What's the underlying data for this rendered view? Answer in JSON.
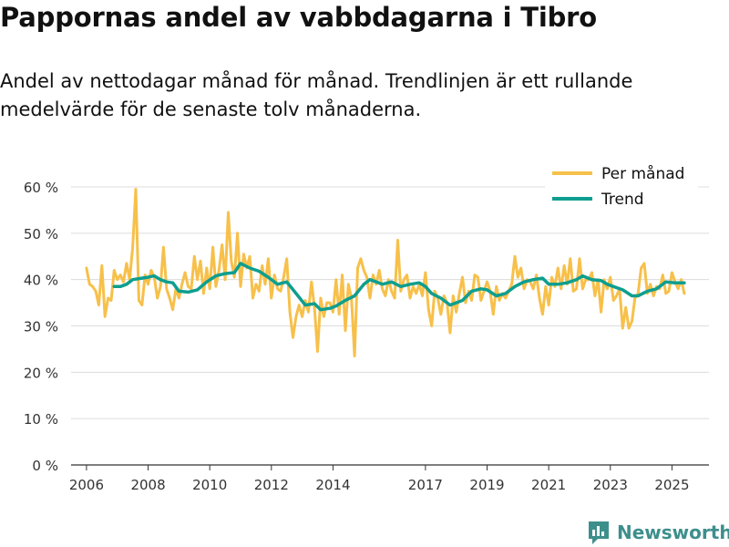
{
  "title": "Pappornas andel av vabbdagarna i Tibro",
  "subtitle": "Andel av nettodagar månad för månad. Trendlinjen är ett rullande medelvärde för de senaste tolv månaderna.",
  "brand": {
    "name": "Newsworthy",
    "icon": "bar-chart-speech-bubble-icon",
    "color": "#3d8f8c"
  },
  "chart_data": {
    "type": "line",
    "x_range": [
      2005.5,
      2026.2
    ],
    "ylim": [
      0,
      60
    ],
    "y_ticks": [
      0,
      10,
      20,
      30,
      40,
      50,
      60
    ],
    "y_tick_labels": [
      "0 %",
      "10 %",
      "20 %",
      "30 %",
      "40 %",
      "50 %",
      "60 %"
    ],
    "x_ticks": [
      2006,
      2008,
      2010,
      2012,
      2014,
      2017,
      2019,
      2021,
      2023,
      2025
    ],
    "x_tick_labels": [
      "2006",
      "2008",
      "2010",
      "2012",
      "2014",
      "2017",
      "2019",
      "2021",
      "2023",
      "2025"
    ],
    "grid": true,
    "legend_position": "top-right",
    "series": [
      {
        "name": "Per månad",
        "color": "#f7c04a",
        "points": [
          [
            2006.0,
            42.5
          ],
          [
            2006.1,
            39.0
          ],
          [
            2006.2,
            38.5
          ],
          [
            2006.3,
            37.5
          ],
          [
            2006.4,
            34.5
          ],
          [
            2006.5,
            43.0
          ],
          [
            2006.6,
            32.0
          ],
          [
            2006.7,
            36.0
          ],
          [
            2006.8,
            35.5
          ],
          [
            2006.9,
            42.0
          ],
          [
            2007.0,
            40.0
          ],
          [
            2007.1,
            41.0
          ],
          [
            2007.2,
            39.5
          ],
          [
            2007.3,
            43.5
          ],
          [
            2007.4,
            40.0
          ],
          [
            2007.5,
            47.0
          ],
          [
            2007.6,
            59.5
          ],
          [
            2007.7,
            35.5
          ],
          [
            2007.8,
            34.5
          ],
          [
            2007.9,
            41.0
          ],
          [
            2008.0,
            39.0
          ],
          [
            2008.1,
            42.0
          ],
          [
            2008.2,
            40.5
          ],
          [
            2008.3,
            36.0
          ],
          [
            2008.4,
            38.5
          ],
          [
            2008.5,
            47.0
          ],
          [
            2008.6,
            38.0
          ],
          [
            2008.7,
            36.0
          ],
          [
            2008.8,
            33.5
          ],
          [
            2008.9,
            38.0
          ],
          [
            2009.0,
            36.0
          ],
          [
            2009.1,
            39.0
          ],
          [
            2009.2,
            41.5
          ],
          [
            2009.3,
            38.5
          ],
          [
            2009.4,
            38.0
          ],
          [
            2009.5,
            45.0
          ],
          [
            2009.6,
            40.0
          ],
          [
            2009.7,
            44.0
          ],
          [
            2009.8,
            37.0
          ],
          [
            2009.9,
            42.5
          ],
          [
            2010.0,
            38.0
          ],
          [
            2010.1,
            47.0
          ],
          [
            2010.2,
            38.5
          ],
          [
            2010.3,
            42.0
          ],
          [
            2010.4,
            47.5
          ],
          [
            2010.5,
            40.0
          ],
          [
            2010.6,
            54.5
          ],
          [
            2010.7,
            44.0
          ],
          [
            2010.8,
            40.5
          ],
          [
            2010.9,
            50.0
          ],
          [
            2011.0,
            38.5
          ],
          [
            2011.1,
            45.5
          ],
          [
            2011.2,
            42.5
          ],
          [
            2011.3,
            45.0
          ],
          [
            2011.4,
            36.0
          ],
          [
            2011.5,
            39.0
          ],
          [
            2011.6,
            37.5
          ],
          [
            2011.7,
            43.0
          ],
          [
            2011.8,
            39.0
          ],
          [
            2011.9,
            44.5
          ],
          [
            2012.0,
            36.0
          ],
          [
            2012.1,
            41.0
          ],
          [
            2012.2,
            38.0
          ],
          [
            2012.3,
            37.5
          ],
          [
            2012.4,
            40.5
          ],
          [
            2012.5,
            44.5
          ],
          [
            2012.6,
            33.0
          ],
          [
            2012.7,
            27.5
          ],
          [
            2012.8,
            32.0
          ],
          [
            2012.9,
            34.5
          ],
          [
            2013.0,
            32.0
          ],
          [
            2013.1,
            35.5
          ],
          [
            2013.2,
            33.0
          ],
          [
            2013.3,
            39.5
          ],
          [
            2013.4,
            34.0
          ],
          [
            2013.5,
            24.5
          ],
          [
            2013.6,
            36.0
          ],
          [
            2013.7,
            32.0
          ],
          [
            2013.8,
            35.0
          ],
          [
            2013.9,
            35.0
          ],
          [
            2014.0,
            33.0
          ],
          [
            2014.1,
            40.0
          ],
          [
            2014.2,
            32.5
          ],
          [
            2014.3,
            41.0
          ],
          [
            2014.4,
            29.0
          ],
          [
            2014.5,
            39.0
          ],
          [
            2014.6,
            36.0
          ],
          [
            2014.7,
            23.5
          ],
          [
            2014.8,
            42.5
          ],
          [
            2014.9,
            44.5
          ],
          [
            2015.0,
            42.0
          ],
          [
            2015.1,
            40.5
          ],
          [
            2015.2,
            36.0
          ],
          [
            2015.3,
            41.0
          ],
          [
            2015.4,
            39.0
          ],
          [
            2015.5,
            42.0
          ],
          [
            2015.6,
            38.0
          ],
          [
            2015.7,
            36.5
          ],
          [
            2015.8,
            40.0
          ],
          [
            2015.9,
            37.5
          ],
          [
            2016.0,
            36.0
          ],
          [
            2016.1,
            48.5
          ],
          [
            2016.2,
            37.5
          ],
          [
            2016.3,
            40.0
          ],
          [
            2016.4,
            41.0
          ],
          [
            2016.5,
            36.0
          ],
          [
            2016.6,
            38.5
          ],
          [
            2016.7,
            37.0
          ],
          [
            2016.8,
            39.0
          ],
          [
            2016.9,
            36.5
          ],
          [
            2017.0,
            41.5
          ],
          [
            2017.1,
            33.5
          ],
          [
            2017.2,
            30.0
          ],
          [
            2017.3,
            37.5
          ],
          [
            2017.4,
            36.0
          ],
          [
            2017.5,
            32.5
          ],
          [
            2017.6,
            36.5
          ],
          [
            2017.7,
            35.0
          ],
          [
            2017.8,
            28.5
          ],
          [
            2017.9,
            36.5
          ],
          [
            2018.0,
            33.0
          ],
          [
            2018.1,
            37.0
          ],
          [
            2018.2,
            40.5
          ],
          [
            2018.3,
            35.0
          ],
          [
            2018.4,
            37.5
          ],
          [
            2018.5,
            35.5
          ],
          [
            2018.6,
            41.0
          ],
          [
            2018.7,
            40.5
          ],
          [
            2018.8,
            35.5
          ],
          [
            2018.9,
            37.5
          ],
          [
            2019.0,
            39.5
          ],
          [
            2019.1,
            37.5
          ],
          [
            2019.2,
            32.5
          ],
          [
            2019.3,
            38.5
          ],
          [
            2019.4,
            35.5
          ],
          [
            2019.5,
            37.0
          ],
          [
            2019.6,
            36.0
          ],
          [
            2019.7,
            37.5
          ],
          [
            2019.8,
            39.0
          ],
          [
            2019.9,
            45.0
          ],
          [
            2020.0,
            40.5
          ],
          [
            2020.1,
            42.5
          ],
          [
            2020.2,
            38.0
          ],
          [
            2020.3,
            40.0
          ],
          [
            2020.4,
            39.5
          ],
          [
            2020.5,
            38.0
          ],
          [
            2020.6,
            41.0
          ],
          [
            2020.7,
            36.0
          ],
          [
            2020.8,
            32.5
          ],
          [
            2020.9,
            38.5
          ],
          [
            2021.0,
            34.5
          ],
          [
            2021.1,
            40.5
          ],
          [
            2021.2,
            38.5
          ],
          [
            2021.3,
            42.5
          ],
          [
            2021.4,
            38.0
          ],
          [
            2021.5,
            43.0
          ],
          [
            2021.6,
            39.0
          ],
          [
            2021.7,
            44.5
          ],
          [
            2021.8,
            37.5
          ],
          [
            2021.9,
            38.0
          ],
          [
            2022.0,
            44.5
          ],
          [
            2022.1,
            38.0
          ],
          [
            2022.2,
            40.0
          ],
          [
            2022.3,
            40.0
          ],
          [
            2022.4,
            41.5
          ],
          [
            2022.5,
            36.5
          ],
          [
            2022.6,
            40.0
          ],
          [
            2022.7,
            33.0
          ],
          [
            2022.8,
            40.0
          ],
          [
            2022.9,
            38.0
          ],
          [
            2023.0,
            40.5
          ],
          [
            2023.1,
            35.5
          ],
          [
            2023.2,
            36.5
          ],
          [
            2023.3,
            38.0
          ],
          [
            2023.4,
            29.5
          ],
          [
            2023.5,
            34.0
          ],
          [
            2023.6,
            29.5
          ],
          [
            2023.7,
            31.0
          ],
          [
            2023.8,
            36.0
          ],
          [
            2023.9,
            37.0
          ],
          [
            2024.0,
            42.5
          ],
          [
            2024.1,
            43.5
          ],
          [
            2024.2,
            37.0
          ],
          [
            2024.3,
            39.0
          ],
          [
            2024.4,
            36.5
          ],
          [
            2024.5,
            38.5
          ],
          [
            2024.6,
            38.0
          ],
          [
            2024.7,
            41.0
          ],
          [
            2024.8,
            37.0
          ],
          [
            2024.9,
            37.5
          ],
          [
            2025.0,
            41.5
          ],
          [
            2025.1,
            39.5
          ],
          [
            2025.2,
            38.0
          ],
          [
            2025.3,
            40.0
          ],
          [
            2025.4,
            37.0
          ]
        ]
      },
      {
        "name": "Trend",
        "color": "#0e9e8f",
        "points": [
          [
            2006.9,
            38.5
          ],
          [
            2007.1,
            38.5
          ],
          [
            2007.3,
            39.0
          ],
          [
            2007.5,
            40.0
          ],
          [
            2007.8,
            40.3
          ],
          [
            2008.0,
            40.5
          ],
          [
            2008.2,
            40.8
          ],
          [
            2008.4,
            40.0
          ],
          [
            2008.6,
            39.5
          ],
          [
            2008.8,
            39.3
          ],
          [
            2009.0,
            37.5
          ],
          [
            2009.3,
            37.3
          ],
          [
            2009.6,
            37.8
          ],
          [
            2009.9,
            39.5
          ],
          [
            2010.2,
            40.8
          ],
          [
            2010.5,
            41.3
          ],
          [
            2010.8,
            41.5
          ],
          [
            2011.0,
            43.5
          ],
          [
            2011.3,
            42.5
          ],
          [
            2011.6,
            41.8
          ],
          [
            2011.9,
            40.5
          ],
          [
            2012.2,
            39.0
          ],
          [
            2012.5,
            39.5
          ],
          [
            2012.8,
            37.0
          ],
          [
            2013.1,
            34.5
          ],
          [
            2013.4,
            34.8
          ],
          [
            2013.6,
            33.5
          ],
          [
            2013.9,
            33.8
          ],
          [
            2014.1,
            34.3
          ],
          [
            2014.4,
            35.5
          ],
          [
            2014.7,
            36.5
          ],
          [
            2015.0,
            39.0
          ],
          [
            2015.2,
            40.0
          ],
          [
            2015.4,
            39.5
          ],
          [
            2015.6,
            39.0
          ],
          [
            2015.9,
            39.5
          ],
          [
            2016.2,
            38.5
          ],
          [
            2016.5,
            39.0
          ],
          [
            2016.8,
            39.3
          ],
          [
            2017.0,
            38.5
          ],
          [
            2017.2,
            37.0
          ],
          [
            2017.5,
            36.0
          ],
          [
            2017.8,
            34.5
          ],
          [
            2018.0,
            35.0
          ],
          [
            2018.2,
            35.5
          ],
          [
            2018.5,
            37.5
          ],
          [
            2018.8,
            38.0
          ],
          [
            2019.0,
            37.8
          ],
          [
            2019.3,
            36.5
          ],
          [
            2019.6,
            37.0
          ],
          [
            2019.9,
            38.5
          ],
          [
            2020.2,
            39.5
          ],
          [
            2020.5,
            40.0
          ],
          [
            2020.8,
            40.3
          ],
          [
            2021.0,
            39.0
          ],
          [
            2021.3,
            39.0
          ],
          [
            2021.6,
            39.3
          ],
          [
            2021.9,
            40.0
          ],
          [
            2022.1,
            40.8
          ],
          [
            2022.4,
            40.0
          ],
          [
            2022.7,
            39.8
          ],
          [
            2022.9,
            39.0
          ],
          [
            2023.1,
            38.5
          ],
          [
            2023.4,
            37.8
          ],
          [
            2023.7,
            36.5
          ],
          [
            2023.9,
            36.5
          ],
          [
            2024.2,
            37.5
          ],
          [
            2024.5,
            38.0
          ],
          [
            2024.8,
            39.5
          ],
          [
            2025.1,
            39.3
          ],
          [
            2025.4,
            39.3
          ]
        ]
      }
    ]
  }
}
